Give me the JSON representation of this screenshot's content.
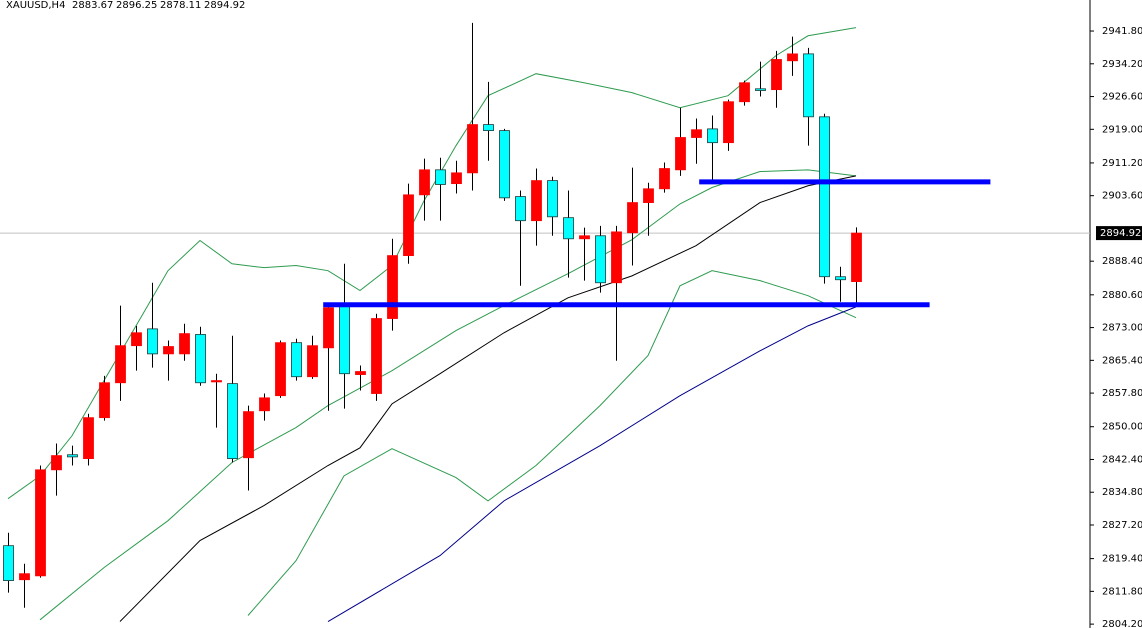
{
  "chart_data": {
    "type": "candlestick",
    "symbol": "XAUUSD,H4",
    "up_color": "#ff0000",
    "down_color": "#00ffff",
    "open": [
      2822.4,
      2814.5,
      2815.4,
      2840.0,
      2843.5,
      2842.6,
      2852.1,
      2860.2,
      2868.8,
      2872.7,
      2866.9,
      2866.9,
      2871.4,
      2860.4,
      2860.0,
      2842.8,
      2853.7,
      2857.2,
      2869.5,
      2861.6,
      2868.3,
      2878.1,
      2862.1,
      2857.7,
      2875.1,
      2889.7,
      2903.8,
      2909.6,
      2906.4,
      2908.9,
      2920.1,
      2918.7,
      2903.4,
      2897.8,
      2907.1,
      2898.5,
      2893.6,
      2894.3,
      2883.4,
      2895.0,
      2902.0,
      2905.2,
      2909.6,
      2917.1,
      2919.1,
      2915.9,
      2925.4,
      2928.4,
      2928.2,
      2934.9,
      2936.5,
      2921.9,
      2884.8,
      2883.67
    ],
    "high": [
      2825.4,
      2818.2,
      2841.0,
      2846.1,
      2845.6,
      2853.0,
      2861.8,
      2878.1,
      2873.4,
      2883.4,
      2870.0,
      2873.9,
      2873.2,
      2862.3,
      2871.1,
      2854.9,
      2857.7,
      2870.0,
      2870.4,
      2871.1,
      2878.5,
      2887.8,
      2864.2,
      2876.2,
      2893.6,
      2906.4,
      2912.2,
      2912.4,
      2911.7,
      2943.7,
      2930.0,
      2919.1,
      2904.8,
      2909.9,
      2908.0,
      2904.8,
      2896.2,
      2896.6,
      2896.6,
      2910.1,
      2906.6,
      2911.3,
      2924.0,
      2921.5,
      2922.2,
      2925.9,
      2930.3,
      2934.7,
      2937.2,
      2940.5,
      2937.9,
      2922.6,
      2887.1,
      2896.25
    ],
    "low": [
      2811.5,
      2808.0,
      2815.0,
      2834.0,
      2841.0,
      2841.0,
      2851.4,
      2856.0,
      2863.0,
      2863.7,
      2860.7,
      2865.3,
      2859.5,
      2849.8,
      2841.7,
      2835.2,
      2851.4,
      2856.7,
      2860.7,
      2861.1,
      2853.7,
      2854.2,
      2858.4,
      2856.0,
      2872.3,
      2887.8,
      2897.8,
      2897.8,
      2904.1,
      2904.8,
      2911.7,
      2902.4,
      2882.7,
      2892.0,
      2894.3,
      2884.6,
      2883.9,
      2881.1,
      2865.3,
      2887.4,
      2894.3,
      2904.3,
      2908.2,
      2911.0,
      2907.1,
      2914.0,
      2924.5,
      2926.6,
      2924.0,
      2931.4,
      2915.2,
      2883.2,
      2879.0,
      2878.11
    ],
    "close": [
      2814.3,
      2815.9,
      2840.0,
      2843.3,
      2843.0,
      2852.1,
      2860.2,
      2868.8,
      2871.8,
      2866.9,
      2868.6,
      2871.6,
      2860.2,
      2860.7,
      2842.6,
      2853.5,
      2856.7,
      2869.5,
      2861.6,
      2868.8,
      2877.6,
      2862.3,
      2862.8,
      2875.1,
      2889.7,
      2903.8,
      2909.6,
      2906.2,
      2908.9,
      2920.1,
      2918.7,
      2903.1,
      2897.8,
      2907.1,
      2898.7,
      2893.6,
      2894.3,
      2883.4,
      2895.2,
      2902.0,
      2905.2,
      2909.9,
      2917.1,
      2918.9,
      2915.9,
      2925.4,
      2929.8,
      2928.0,
      2935.2,
      2936.5,
      2921.9,
      2884.8,
      2884.1,
      2894.92
    ],
    "lines": [
      {
        "color": "#2e9b4f",
        "x": [
          0,
          2,
          4,
          6,
          8,
          10,
          12,
          14,
          16,
          18,
          20,
          22,
          24,
          26,
          28,
          30,
          33,
          36,
          39,
          42,
          45,
          48,
          50,
          53
        ],
        "values": [
          2833.3,
          2838.6,
          2847.9,
          2860.7,
          2873.4,
          2886.2,
          2893.2,
          2887.8,
          2886.9,
          2887.4,
          2886.2,
          2881.6,
          2887.4,
          2902.4,
          2915.2,
          2926.8,
          2931.9,
          2929.8,
          2927.5,
          2924.0,
          2926.8,
          2936.1,
          2940.7,
          2942.6
        ]
      },
      {
        "color": "#2e9b4f",
        "x": [
          2,
          6,
          10,
          14,
          18,
          20,
          24,
          28,
          31,
          35,
          39,
          42,
          44,
          47,
          50,
          53
        ],
        "values": [
          2805.2,
          2817.3,
          2828.2,
          2841.7,
          2849.8,
          2854.9,
          2863.0,
          2872.3,
          2878.1,
          2885.5,
          2893.4,
          2901.7,
          2905.5,
          2909.2,
          2909.6,
          2908.2
        ]
      },
      {
        "color": "#2e9b4f",
        "x": [
          15,
          18,
          21,
          24,
          28,
          30,
          33,
          35,
          37,
          40,
          42,
          44,
          47,
          50,
          53
        ],
        "values": [
          2806.2,
          2818.9,
          2838.6,
          2844.9,
          2838.2,
          2832.8,
          2841.0,
          2847.9,
          2854.9,
          2866.5,
          2882.7,
          2886.2,
          2883.9,
          2880.4,
          2875.3
        ]
      },
      {
        "color": "#000000",
        "x": [
          7,
          12,
          16,
          20,
          22,
          24,
          27,
          31,
          35,
          39,
          43,
          47,
          50,
          53
        ],
        "values": [
          2804.8,
          2823.6,
          2831.7,
          2841.0,
          2845.1,
          2855.3,
          2862.3,
          2871.8,
          2879.9,
          2885.0,
          2892.0,
          2902.0,
          2905.9,
          2908.2
        ]
      },
      {
        "color": "#00008b",
        "x": [
          20,
          27,
          31,
          37,
          42,
          47,
          50,
          53
        ],
        "values": [
          2804.8,
          2820.1,
          2832.8,
          2845.6,
          2857.2,
          2867.6,
          2873.4,
          2877.8
        ]
      }
    ],
    "levels": [
      {
        "value": 2878.3,
        "x": [
          19.7,
          57.6
        ],
        "color": "#0000ff"
      },
      {
        "value": 2906.8,
        "x": [
          43.2,
          61.4
        ],
        "color": "#0000ff"
      }
    ],
    "ylim": [
      2803.3,
      2949.0
    ],
    "yticks": [
      {
        "value": 2941.8,
        "label": "2941.80"
      },
      {
        "value": 2934.2,
        "label": "2934.20"
      },
      {
        "value": 2926.6,
        "label": "2926.60"
      },
      {
        "value": 2919.0,
        "label": "2919.00"
      },
      {
        "value": 2911.2,
        "label": "2911.20"
      },
      {
        "value": 2903.6,
        "label": "2903.60"
      },
      {
        "value": 2888.4,
        "label": "2888.40"
      },
      {
        "value": 2880.6,
        "label": "2880.60"
      },
      {
        "value": 2873.0,
        "label": "2873.00"
      },
      {
        "value": 2865.4,
        "label": "2865.40"
      },
      {
        "value": 2857.8,
        "label": "2857.80"
      },
      {
        "value": 2850.0,
        "label": "2850.00"
      },
      {
        "value": 2842.4,
        "label": "2842.40"
      },
      {
        "value": 2834.8,
        "label": "2834.80"
      },
      {
        "value": 2827.2,
        "label": "2827.20"
      },
      {
        "value": 2819.4,
        "label": "2819.40"
      },
      {
        "value": 2811.8,
        "label": "2811.80"
      },
      {
        "value": 2804.2,
        "label": "2804.20"
      }
    ]
  }
}
